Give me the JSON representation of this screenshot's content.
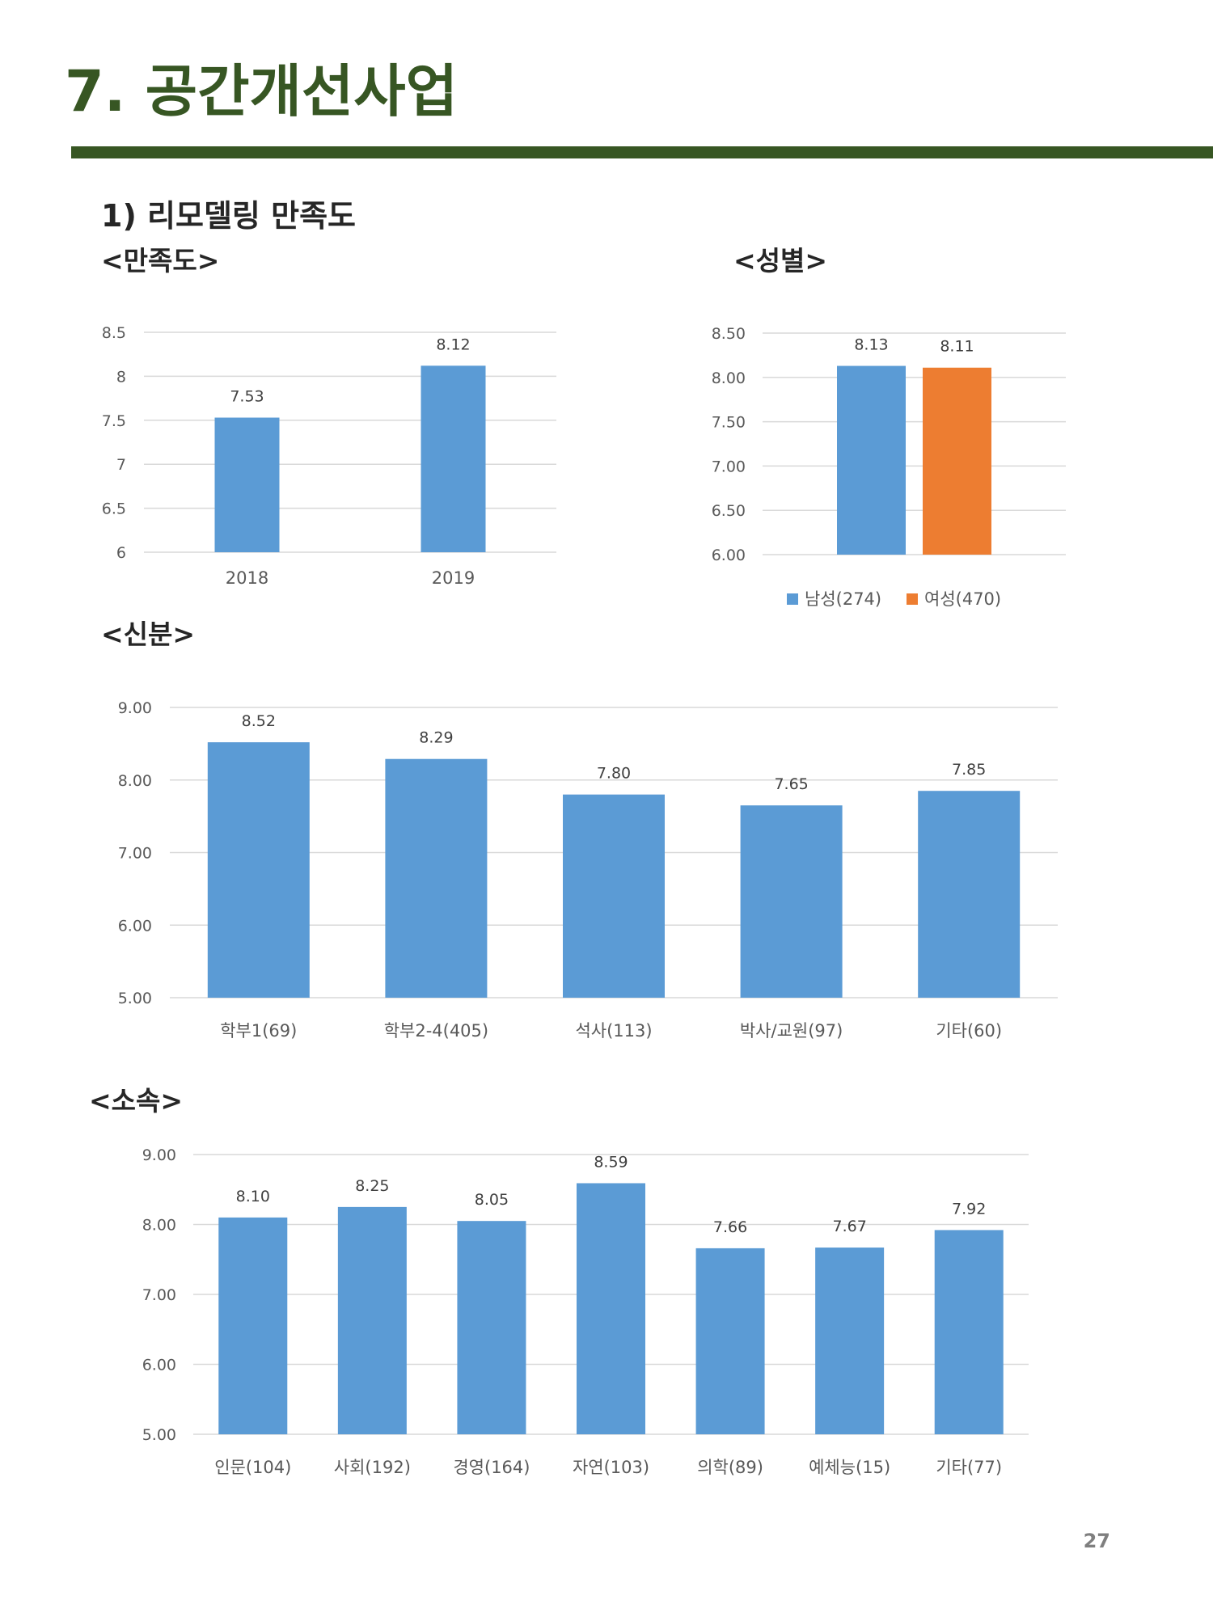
{
  "page": {
    "title": "7. 공간개선사업",
    "section_title": "1) 리모델링 만족도",
    "page_number": "27"
  },
  "colors": {
    "title": "#375623",
    "bar_blue": "#5b9bd5",
    "bar_orange": "#ed7d31",
    "grid": "#d9d9d9"
  },
  "chart_data": [
    {
      "id": "satisfaction",
      "type": "bar",
      "title": "<만족도>",
      "categories": [
        "2018",
        "2019"
      ],
      "values": [
        7.53,
        8.12
      ],
      "data_labels": [
        "7.53",
        "8.12"
      ],
      "ylim": [
        6,
        8.5
      ],
      "yticks": [
        "6",
        "6.5",
        "7",
        "7.5",
        "8",
        "8.5"
      ],
      "grid": true,
      "legend": "none"
    },
    {
      "id": "gender",
      "type": "bar",
      "title": "<성별>",
      "series": [
        {
          "name": "남성(274)",
          "values": [
            8.13
          ],
          "color": "#5b9bd5",
          "data_label": "8.13"
        },
        {
          "name": "여성(470)",
          "values": [
            8.11
          ],
          "color": "#ed7d31",
          "data_label": "8.11"
        }
      ],
      "ylim": [
        6,
        8.5
      ],
      "yticks": [
        "6.00",
        "6.50",
        "7.00",
        "7.50",
        "8.00",
        "8.50"
      ],
      "grid": true,
      "legend": "bottom"
    },
    {
      "id": "status",
      "type": "bar",
      "title": "<신분>",
      "categories": [
        "학부1(69)",
        "학부2-4(405)",
        "석사(113)",
        "박사/교원(97)",
        "기타(60)"
      ],
      "values": [
        8.52,
        8.29,
        7.8,
        7.65,
        7.85
      ],
      "data_labels": [
        "8.52",
        "8.29",
        "7.80",
        "7.65",
        "7.85"
      ],
      "ylim": [
        5,
        9
      ],
      "yticks": [
        "5.00",
        "6.00",
        "7.00",
        "8.00",
        "9.00"
      ],
      "grid": true,
      "legend": "none"
    },
    {
      "id": "affiliation",
      "type": "bar",
      "title": "<소속>",
      "categories": [
        "인문(104)",
        "사회(192)",
        "경영(164)",
        "자연(103)",
        "의학(89)",
        "예체능(15)",
        "기타(77)"
      ],
      "values": [
        8.1,
        8.25,
        8.05,
        8.59,
        7.66,
        7.67,
        7.92
      ],
      "data_labels": [
        "8.10",
        "8.25",
        "8.05",
        "8.59",
        "7.66",
        "7.67",
        "7.92"
      ],
      "ylim": [
        5,
        9
      ],
      "yticks": [
        "5.00",
        "6.00",
        "7.00",
        "8.00",
        "9.00"
      ],
      "grid": true,
      "legend": "none"
    }
  ]
}
